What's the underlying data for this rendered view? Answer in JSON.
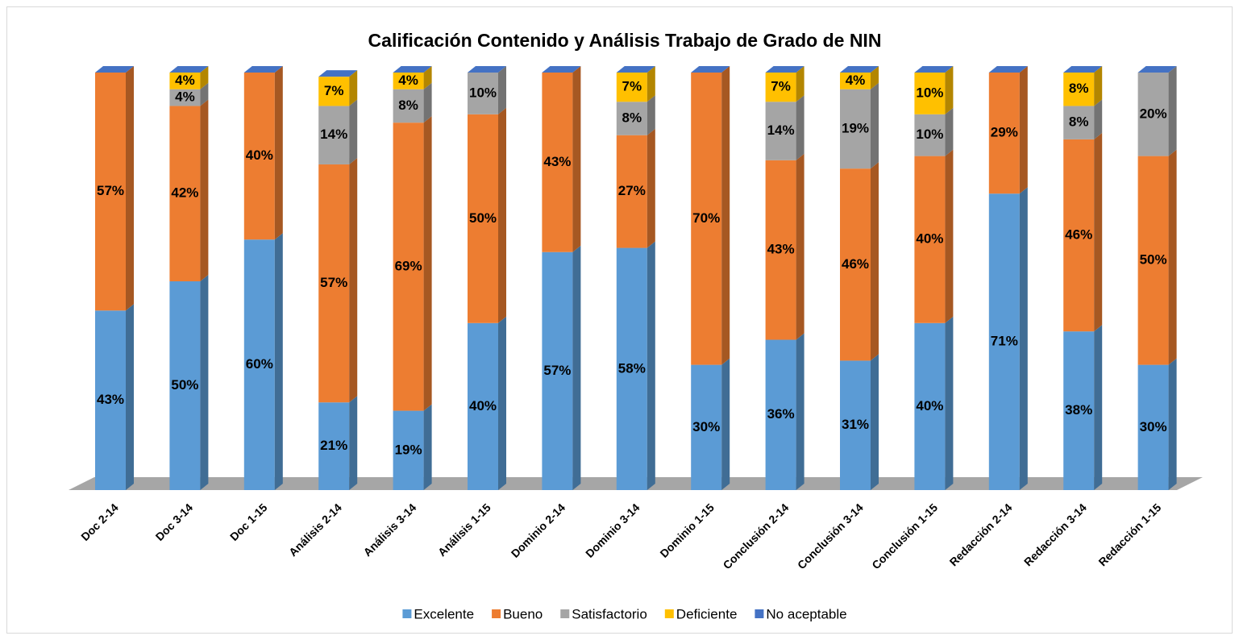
{
  "chart_data": {
    "type": "bar3d_stacked",
    "title": "Calificación Contenido y Análisis Trabajo de Grado de NIN",
    "categories": [
      "Doc 2-14",
      "Doc 3-14",
      "Doc 1-15",
      "Análisis 2-14",
      "Análisis 3-14",
      "Análisis 1-15",
      "Dominio 2-14",
      "Dominio 3-14",
      "Dominio 1-15",
      "Conclusión 2-14",
      "Conclusión 3-14",
      "Conclusión 1-15",
      "Redacción 2-14",
      "Redacción 3-14",
      "Redacción 1-15"
    ],
    "ylim": [
      0,
      100
    ],
    "legend": "bottom",
    "series": [
      {
        "name": "Excelente",
        "color": "#5b9bd5",
        "values": [
          43,
          50,
          60,
          21,
          19,
          40,
          57,
          58,
          30,
          36,
          31,
          40,
          71,
          38,
          30
        ],
        "value_labels": [
          "43%",
          "50%",
          "60%",
          "21%",
          "19%",
          "40%",
          "57%",
          "58%",
          "30%",
          "36%",
          "31%",
          "40%",
          "71%",
          "38%",
          "30%"
        ]
      },
      {
        "name": "Bueno",
        "color": "#ed7d31",
        "values": [
          57,
          42,
          40,
          57,
          69,
          50,
          43,
          27,
          70,
          43,
          46,
          40,
          29,
          46,
          50
        ],
        "value_labels": [
          "57%",
          "42%",
          "40%",
          "57%",
          "69%",
          "50%",
          "43%",
          "27%",
          "70%",
          "43%",
          "46%",
          "40%",
          "29%",
          "46%",
          "50%"
        ]
      },
      {
        "name": "Satisfactorio",
        "color": "#a5a5a5",
        "values": [
          0,
          4,
          0,
          14,
          8,
          10,
          0,
          8,
          0,
          14,
          19,
          10,
          0,
          8,
          20
        ],
        "value_labels": [
          null,
          "4%",
          null,
          "14%",
          "8%",
          "10%",
          null,
          "8%",
          null,
          "14%",
          "19%",
          "10%",
          null,
          "8%",
          "20%"
        ]
      },
      {
        "name": "Deficiente",
        "color": "#ffc000",
        "values": [
          0,
          4,
          0,
          7,
          4,
          0,
          0,
          7,
          0,
          7,
          4,
          10,
          0,
          8,
          0
        ],
        "value_labels": [
          null,
          "4%",
          null,
          "7%",
          "4%",
          null,
          null,
          "7%",
          null,
          "7%",
          "4%",
          "10%",
          null,
          "8%",
          null
        ]
      },
      {
        "name": "No aceptable",
        "color": "#4472c4",
        "values": [
          0,
          0,
          0,
          0,
          0,
          0,
          0,
          0,
          0,
          0,
          0,
          0,
          0,
          0,
          0
        ],
        "value_labels": [
          null,
          null,
          null,
          null,
          null,
          null,
          null,
          null,
          null,
          null,
          null,
          null,
          null,
          null,
          null
        ]
      }
    ]
  }
}
